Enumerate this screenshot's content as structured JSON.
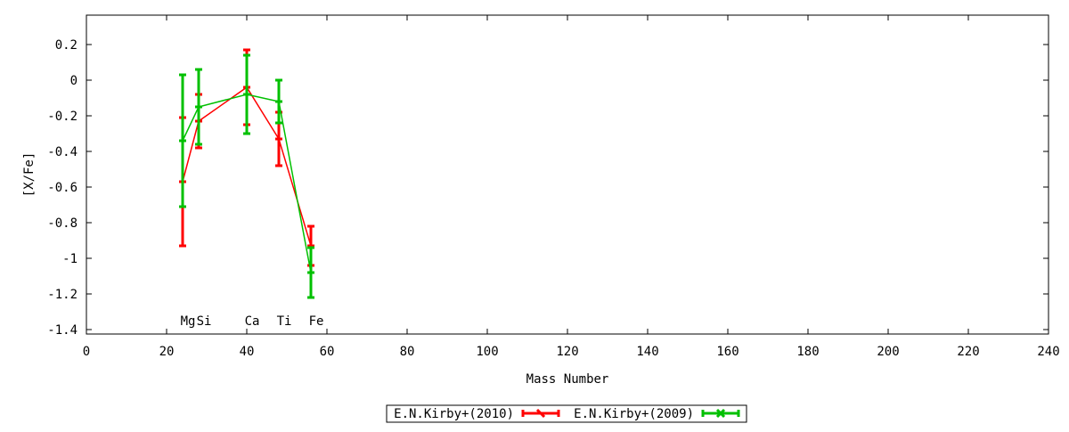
{
  "chart_data": {
    "type": "line",
    "title": "",
    "xlabel": "Mass Number",
    "ylabel": "[X/Fe]",
    "xlim": [
      0,
      240
    ],
    "ylim": [
      -1.4,
      0.36
    ],
    "xticks": [
      0,
      20,
      40,
      60,
      80,
      100,
      120,
      140,
      160,
      180,
      200,
      220,
      240
    ],
    "yticks": [
      0.2,
      0,
      -0.2,
      -0.4,
      -0.6,
      -0.8,
      -1,
      -1.2,
      -1.4
    ],
    "grid": false,
    "legend": "bottom-center",
    "annotations": [
      {
        "text": "Mg",
        "x": 24
      },
      {
        "text": "Si",
        "x": 28
      },
      {
        "text": "Ca",
        "x": 40
      },
      {
        "text": "Ti",
        "x": 48
      },
      {
        "text": "Fe",
        "x": 56
      }
    ],
    "series": [
      {
        "name": "E.N.Kirby+(2010)",
        "color": "#ff0000",
        "x": [
          24,
          28,
          40,
          48,
          56
        ],
        "y": [
          -0.57,
          -0.23,
          -0.04,
          -0.33,
          -0.93
        ],
        "yerr": [
          0.36,
          0.15,
          0.21,
          0.15,
          0.11
        ]
      },
      {
        "name": "E.N.Kirby+(2009)",
        "color": "#00c000",
        "x": [
          24,
          28,
          40,
          48,
          56
        ],
        "y": [
          -0.34,
          -0.15,
          -0.08,
          -0.12,
          -1.08
        ],
        "yerr": [
          0.37,
          0.21,
          0.22,
          0.12,
          0.14
        ]
      }
    ]
  }
}
